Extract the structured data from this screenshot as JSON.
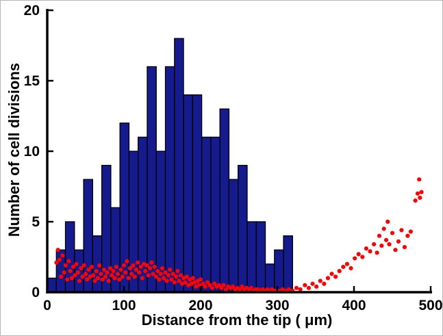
{
  "chart_data": {
    "type": "bar",
    "subtype": "histogram-with-scatter-overlay",
    "title": "",
    "xlabel": "Distance from the tip ( μm)",
    "ylabel": "Number of cell divisions",
    "xlim": [
      0,
      500
    ],
    "ylim": [
      0,
      20
    ],
    "xticks": [
      0,
      100,
      200,
      300,
      400,
      500
    ],
    "yticks": [
      0,
      5,
      10,
      15,
      20
    ],
    "grid": false,
    "legend": null,
    "axis_color": "#000000",
    "histogram": {
      "bin_start": 0,
      "bin_width": 11.85,
      "counts": [
        1,
        3,
        5,
        3,
        8,
        4,
        9,
        6,
        12,
        10,
        11,
        16,
        10,
        16,
        18,
        14,
        14,
        11,
        11,
        13,
        8,
        9,
        5,
        5,
        2,
        3,
        4
      ],
      "fill": "#151b8c",
      "edge": "#000000"
    },
    "scatter": {
      "color": "#ff0000",
      "marker_size": 3.1,
      "points": [
        [
          12,
          2.1
        ],
        [
          14,
          3.0
        ],
        [
          16,
          2.3
        ],
        [
          18,
          1.1
        ],
        [
          20,
          2.6
        ],
        [
          22,
          1.4
        ],
        [
          24,
          1.9
        ],
        [
          26,
          0.9
        ],
        [
          28,
          2.2
        ],
        [
          30,
          1.5
        ],
        [
          32,
          1.0
        ],
        [
          34,
          1.8
        ],
        [
          36,
          1.2
        ],
        [
          38,
          2.0
        ],
        [
          40,
          1.4
        ],
        [
          42,
          0.8
        ],
        [
          44,
          1.7
        ],
        [
          46,
          1.1
        ],
        [
          48,
          1.9
        ],
        [
          50,
          1.3
        ],
        [
          52,
          0.9
        ],
        [
          54,
          1.6
        ],
        [
          56,
          1.1
        ],
        [
          58,
          1.8
        ],
        [
          60,
          1.2
        ],
        [
          62,
          0.8
        ],
        [
          64,
          1.5
        ],
        [
          66,
          1.0
        ],
        [
          68,
          1.9
        ],
        [
          70,
          1.3
        ],
        [
          72,
          0.9
        ],
        [
          74,
          1.6
        ],
        [
          76,
          1.1
        ],
        [
          78,
          1.4
        ],
        [
          80,
          0.8
        ],
        [
          82,
          1.7
        ],
        [
          84,
          1.2
        ],
        [
          86,
          1.5
        ],
        [
          88,
          1.0
        ],
        [
          90,
          1.8
        ],
        [
          92,
          1.3
        ],
        [
          94,
          0.9
        ],
        [
          96,
          1.6
        ],
        [
          98,
          1.1
        ],
        [
          100,
          1.9
        ],
        [
          102,
          1.4
        ],
        [
          104,
          2.2
        ],
        [
          106,
          1.0
        ],
        [
          108,
          1.7
        ],
        [
          110,
          1.3
        ],
        [
          112,
          1.9
        ],
        [
          114,
          1.1
        ],
        [
          116,
          1.6
        ],
        [
          118,
          2.1
        ],
        [
          120,
          1.4
        ],
        [
          122,
          1.8
        ],
        [
          124,
          1.0
        ],
        [
          126,
          2.0
        ],
        [
          128,
          1.5
        ],
        [
          130,
          1.9
        ],
        [
          132,
          1.2
        ],
        [
          134,
          1.7
        ],
        [
          136,
          2.1
        ],
        [
          138,
          1.3
        ],
        [
          140,
          1.8
        ],
        [
          142,
          1.1
        ],
        [
          144,
          1.5
        ],
        [
          146,
          0.9
        ],
        [
          148,
          1.3
        ],
        [
          150,
          1.7
        ],
        [
          152,
          1.0
        ],
        [
          154,
          1.4
        ],
        [
          156,
          0.8
        ],
        [
          158,
          1.2
        ],
        [
          160,
          1.6
        ],
        [
          162,
          0.9
        ],
        [
          164,
          1.3
        ],
        [
          166,
          0.7
        ],
        [
          168,
          1.1
        ],
        [
          170,
          1.5
        ],
        [
          172,
          0.8
        ],
        [
          174,
          1.2
        ],
        [
          176,
          0.6
        ],
        [
          178,
          1.0
        ],
        [
          180,
          0.7
        ],
        [
          182,
          1.1
        ],
        [
          184,
          0.5
        ],
        [
          186,
          0.9
        ],
        [
          188,
          0.6
        ],
        [
          190,
          1.0
        ],
        [
          192,
          0.7
        ],
        [
          194,
          0.4
        ],
        [
          196,
          0.8
        ],
        [
          198,
          0.5
        ],
        [
          200,
          0.9
        ],
        [
          203,
          0.6
        ],
        [
          206,
          0.4
        ],
        [
          209,
          0.7
        ],
        [
          212,
          0.5
        ],
        [
          215,
          0.3
        ],
        [
          218,
          0.6
        ],
        [
          221,
          0.4
        ],
        [
          224,
          0.5
        ],
        [
          227,
          0.3
        ],
        [
          230,
          0.5
        ],
        [
          233,
          0.2
        ],
        [
          236,
          0.4
        ],
        [
          239,
          0.3
        ],
        [
          242,
          0.4
        ],
        [
          245,
          0.2
        ],
        [
          248,
          0.3
        ],
        [
          251,
          0.2
        ],
        [
          254,
          0.4
        ],
        [
          257,
          0.2
        ],
        [
          260,
          0.3
        ],
        [
          263,
          0.2
        ],
        [
          266,
          0.3
        ],
        [
          269,
          0.1
        ],
        [
          272,
          0.2
        ],
        [
          275,
          0.2
        ],
        [
          278,
          0.1
        ],
        [
          281,
          0.2
        ],
        [
          284,
          0.1
        ],
        [
          287,
          0.2
        ],
        [
          290,
          0.1
        ],
        [
          293,
          0.2
        ],
        [
          296,
          0.1
        ],
        [
          299,
          0.1
        ],
        [
          303,
          0.1
        ],
        [
          307,
          0.2
        ],
        [
          311,
          0.1
        ],
        [
          315,
          0.2
        ],
        [
          320,
          0.1
        ],
        [
          325,
          0.3
        ],
        [
          330,
          0.2
        ],
        [
          336,
          0.5
        ],
        [
          341,
          0.3
        ],
        [
          346,
          0.6
        ],
        [
          351,
          0.4
        ],
        [
          356,
          0.8
        ],
        [
          361,
          0.6
        ],
        [
          366,
          1.0
        ],
        [
          371,
          1.3
        ],
        [
          376,
          1.1
        ],
        [
          381,
          1.5
        ],
        [
          386,
          1.8
        ],
        [
          391,
          2.0
        ],
        [
          396,
          1.7
        ],
        [
          401,
          2.4
        ],
        [
          406,
          2.7
        ],
        [
          411,
          2.5
        ],
        [
          416,
          3.1
        ],
        [
          421,
          2.9
        ],
        [
          426,
          3.4
        ],
        [
          430,
          2.8
        ],
        [
          433,
          4.0
        ],
        [
          436,
          3.3
        ],
        [
          439,
          4.5
        ],
        [
          442,
          3.7
        ],
        [
          444,
          5.0
        ],
        [
          446,
          3.4
        ],
        [
          450,
          4.2
        ],
        [
          454,
          3.0
        ],
        [
          458,
          3.6
        ],
        [
          462,
          4.4
        ],
        [
          466,
          3.2
        ],
        [
          470,
          4.0
        ],
        [
          474,
          4.3
        ],
        [
          480,
          6.5
        ],
        [
          483,
          7.0
        ],
        [
          485,
          8.0
        ],
        [
          486,
          6.7
        ],
        [
          488,
          7.1
        ]
      ]
    }
  }
}
